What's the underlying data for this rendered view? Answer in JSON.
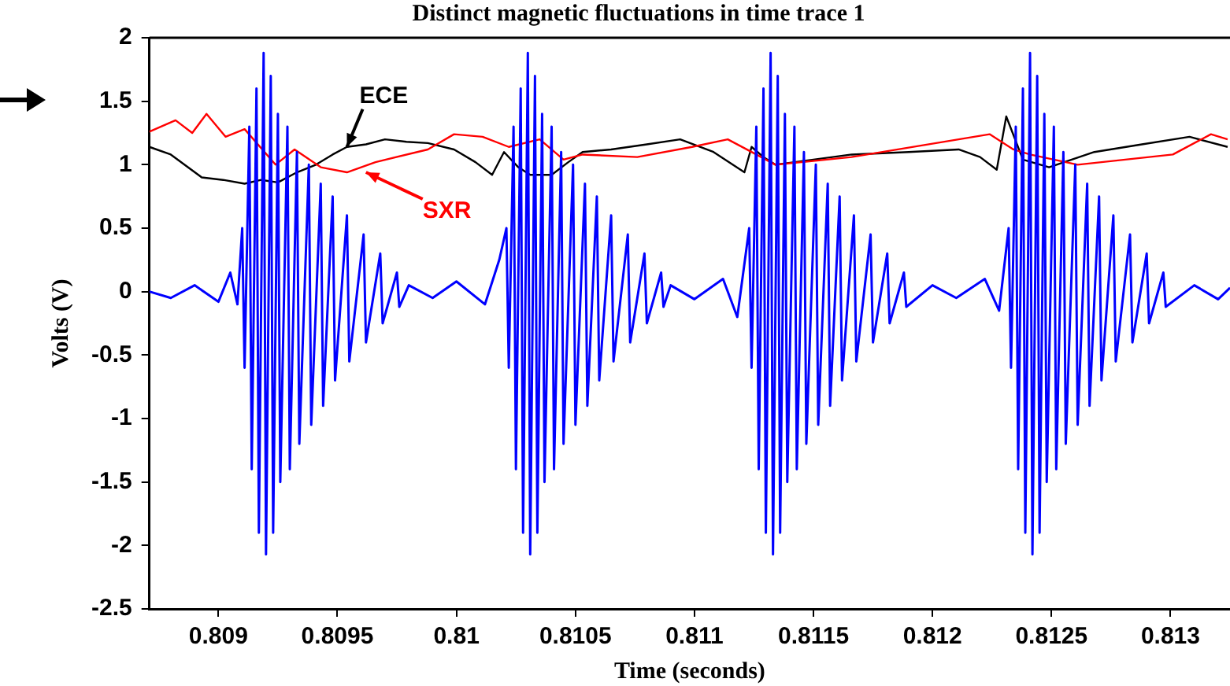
{
  "chart_data": {
    "type": "line",
    "title": "Distinct magnetic fluctuations in time trace 1",
    "xlabel": "Time (seconds)",
    "ylabel": "Volts (V)",
    "xlim": [
      0.80871,
      0.81325
    ],
    "xticks": [
      0.809,
      0.8095,
      0.81,
      0.8105,
      0.811,
      0.8115,
      0.812,
      0.8125,
      0.813
    ],
    "ylim": [
      -2.5,
      2
    ],
    "yticks": [
      -2.5,
      -2,
      -1.5,
      -1,
      -0.5,
      0,
      0.5,
      1,
      1.5,
      2
    ],
    "grid": false,
    "legend": false,
    "marker": "none",
    "line_style": "solid",
    "annotations": [
      {
        "text": "ECE",
        "x": 0.80954,
        "y": 1.14
      },
      {
        "text": "SXR",
        "x": 0.80962,
        "y": 0.94
      }
    ],
    "series": [
      {
        "color": "#000000",
        "x": [
          0.80871,
          0.8088,
          0.80893,
          0.80902,
          0.80911,
          0.80918,
          0.80925,
          0.80933,
          0.80941,
          0.80948,
          0.80954,
          0.80962,
          0.8097,
          0.80979,
          0.80988,
          0.80999,
          0.81008,
          0.81015,
          0.8102,
          0.81026,
          0.81031,
          0.8104,
          0.81047,
          0.81053,
          0.81065,
          0.8108,
          0.81094,
          0.81108,
          0.81121,
          0.81124,
          0.81129,
          0.81134,
          0.8115,
          0.81166,
          0.8119,
          0.81211,
          0.8122,
          0.81227,
          0.81231,
          0.81238,
          0.81249,
          0.81268,
          0.81288,
          0.81308,
          0.81324
        ],
        "values": [
          1.14,
          1.08,
          0.9,
          0.88,
          0.85,
          0.88,
          0.86,
          0.94,
          1.0,
          1.08,
          1.14,
          1.16,
          1.2,
          1.18,
          1.17,
          1.12,
          1.02,
          0.92,
          1.1,
          0.98,
          0.92,
          0.92,
          1.02,
          1.1,
          1.12,
          1.16,
          1.2,
          1.1,
          0.94,
          1.14,
          1.06,
          1.0,
          1.04,
          1.08,
          1.1,
          1.12,
          1.06,
          0.96,
          1.38,
          1.04,
          0.98,
          1.1,
          1.16,
          1.22,
          1.14
        ]
      },
      {
        "color": "#ff0000",
        "x": [
          0.80871,
          0.80882,
          0.80889,
          0.80895,
          0.80903,
          0.80911,
          0.80924,
          0.80932,
          0.80943,
          0.80954,
          0.80966,
          0.80988,
          0.80999,
          0.81011,
          0.81022,
          0.81035,
          0.81045,
          0.81053,
          0.81076,
          0.81099,
          0.81114,
          0.81126,
          0.81134,
          0.81166,
          0.81211,
          0.81224,
          0.81234,
          0.81241,
          0.81261,
          0.81301,
          0.81317,
          0.81324
        ],
        "values": [
          1.26,
          1.35,
          1.25,
          1.4,
          1.22,
          1.28,
          1.0,
          1.12,
          0.98,
          0.94,
          1.02,
          1.12,
          1.24,
          1.22,
          1.14,
          1.2,
          1.04,
          1.08,
          1.06,
          1.14,
          1.2,
          1.08,
          1.0,
          1.06,
          1.2,
          1.24,
          1.12,
          1.08,
          1.0,
          1.08,
          1.24,
          1.2
        ]
      },
      {
        "color": "#0000ff",
        "x": [
          0.80871,
          0.8088,
          0.8089,
          0.809,
          0.80905,
          0.80908,
          0.8091,
          0.80911,
          0.80913,
          0.80914,
          0.80916,
          0.80917,
          0.80919,
          0.8092,
          0.80922,
          0.80923,
          0.80925,
          0.80926,
          0.80929,
          0.8093,
          0.80933,
          0.80934,
          0.80938,
          0.80939,
          0.80943,
          0.80944,
          0.80948,
          0.80949,
          0.80954,
          0.80955,
          0.80961,
          0.80962,
          0.80968,
          0.80969,
          0.80975,
          0.80976,
          0.8098,
          0.8099,
          0.81,
          0.81012,
          0.81018,
          0.81021,
          0.81022,
          0.81024,
          0.81025,
          0.81027,
          0.81028,
          0.8103,
          0.81031,
          0.81033,
          0.81034,
          0.81036,
          0.81037,
          0.8104,
          0.81041,
          0.81044,
          0.81045,
          0.81049,
          0.8105,
          0.81054,
          0.81055,
          0.81059,
          0.8106,
          0.81065,
          0.81066,
          0.81072,
          0.81073,
          0.81079,
          0.8108,
          0.81086,
          0.81087,
          0.8109,
          0.811,
          0.81112,
          0.81118,
          0.81123,
          0.81124,
          0.81126,
          0.81127,
          0.81129,
          0.8113,
          0.81132,
          0.81133,
          0.81135,
          0.81136,
          0.81138,
          0.81139,
          0.81142,
          0.81143,
          0.81146,
          0.81147,
          0.81151,
          0.81152,
          0.81156,
          0.81157,
          0.81161,
          0.81162,
          0.81167,
          0.81168,
          0.81174,
          0.81175,
          0.81181,
          0.81182,
          0.81188,
          0.81189,
          0.812,
          0.8121,
          0.81222,
          0.81228,
          0.81232,
          0.81233,
          0.81235,
          0.81236,
          0.81238,
          0.81239,
          0.81241,
          0.81242,
          0.81244,
          0.81245,
          0.81247,
          0.81248,
          0.81251,
          0.81252,
          0.81255,
          0.81256,
          0.8126,
          0.81261,
          0.81265,
          0.81266,
          0.8127,
          0.81271,
          0.81276,
          0.81277,
          0.81283,
          0.81284,
          0.8129,
          0.81291,
          0.81297,
          0.81298,
          0.8131,
          0.8132,
          0.81325
        ],
        "values": [
          0.0,
          -0.05,
          0.05,
          -0.08,
          0.15,
          -0.1,
          0.5,
          -0.6,
          1.3,
          -1.4,
          1.6,
          -1.9,
          1.88,
          -2.07,
          1.7,
          -1.9,
          1.4,
          -1.5,
          1.3,
          -1.4,
          1.1,
          -1.2,
          1.0,
          -1.05,
          0.85,
          -0.9,
          0.75,
          -0.7,
          0.6,
          -0.55,
          0.45,
          -0.4,
          0.3,
          -0.25,
          0.15,
          -0.12,
          0.05,
          -0.05,
          0.08,
          -0.1,
          0.25,
          0.5,
          -0.6,
          1.3,
          -1.4,
          1.6,
          -1.9,
          1.88,
          -2.07,
          1.7,
          -1.9,
          1.4,
          -1.5,
          1.3,
          -1.4,
          1.1,
          -1.2,
          1.0,
          -1.05,
          0.85,
          -0.9,
          0.75,
          -0.7,
          0.6,
          -0.55,
          0.45,
          -0.4,
          0.3,
          -0.25,
          0.15,
          -0.12,
          0.05,
          -0.06,
          0.1,
          -0.2,
          0.5,
          -0.6,
          1.3,
          -1.4,
          1.6,
          -1.9,
          1.88,
          -2.07,
          1.7,
          -1.9,
          1.4,
          -1.5,
          1.3,
          -1.4,
          1.1,
          -1.2,
          1.0,
          -1.05,
          0.85,
          -0.9,
          0.75,
          -0.7,
          0.6,
          -0.55,
          0.45,
          -0.4,
          0.3,
          -0.25,
          0.15,
          -0.12,
          0.05,
          -0.05,
          0.1,
          -0.15,
          0.5,
          -0.6,
          1.3,
          -1.4,
          1.6,
          -1.9,
          1.88,
          -2.07,
          1.7,
          -1.9,
          1.4,
          -1.5,
          1.3,
          -1.4,
          1.1,
          -1.2,
          1.0,
          -1.05,
          0.85,
          -0.9,
          0.75,
          -0.7,
          0.6,
          -0.55,
          0.45,
          -0.4,
          0.3,
          -0.25,
          0.15,
          -0.12,
          0.05,
          -0.06,
          0.03
        ]
      }
    ]
  }
}
